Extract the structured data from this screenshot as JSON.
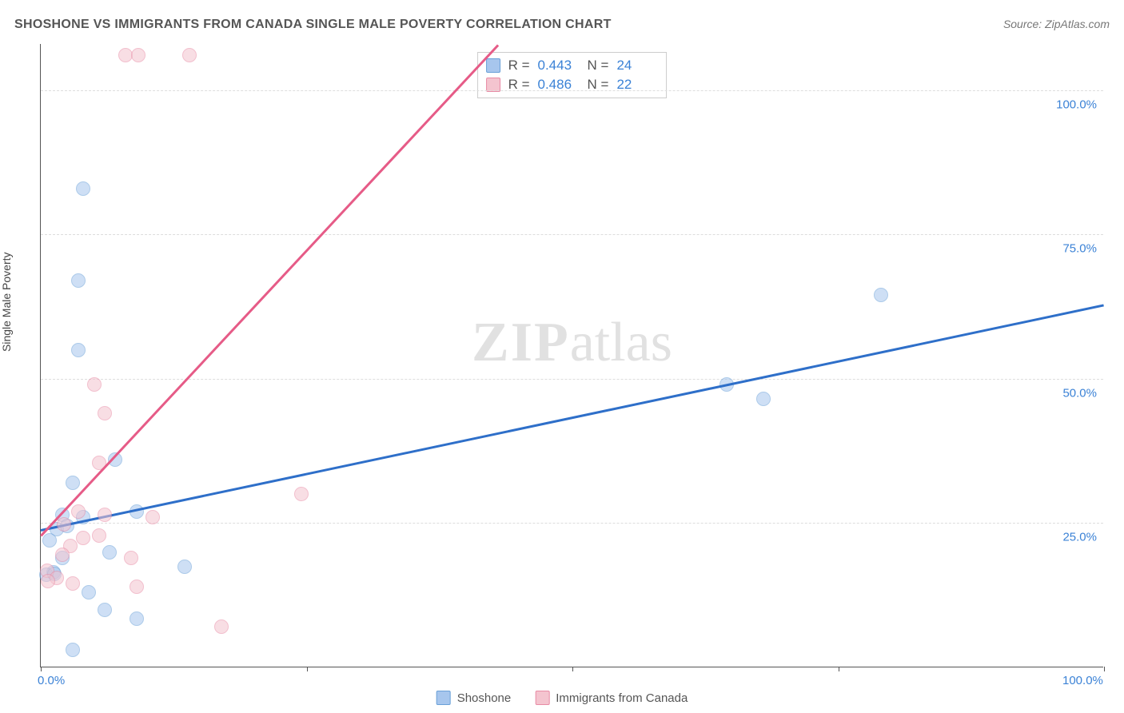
{
  "title": "SHOSHONE VS IMMIGRANTS FROM CANADA SINGLE MALE POVERTY CORRELATION CHART",
  "source": "Source: ZipAtlas.com",
  "y_axis_label": "Single Male Poverty",
  "watermark_zip": "ZIP",
  "watermark_atlas": "atlas",
  "chart": {
    "type": "scatter",
    "xlim": [
      0,
      100
    ],
    "ylim": [
      0,
      108
    ],
    "x_ticks": [
      0,
      25,
      50,
      75,
      100
    ],
    "x_tick_labels": {
      "0": "0.0%",
      "100": "100.0%"
    },
    "y_ticks": [
      25,
      50,
      75,
      100
    ],
    "y_tick_labels": {
      "25": "25.0%",
      "50": "50.0%",
      "75": "75.0%",
      "100": "100.0%"
    },
    "grid_color": "#dddddd",
    "background_color": "#ffffff",
    "axis_color": "#555555",
    "point_radius": 9,
    "point_opacity": 0.55,
    "series": [
      {
        "name": "Shoshone",
        "color_fill": "#a7c6ed",
        "color_stroke": "#6aa0d8",
        "trend_color": "#2e6fc9",
        "trend_width": 2.5,
        "R": "0.443",
        "N": "24",
        "trend": {
          "x1": 0,
          "y1": 24,
          "x2": 100,
          "y2": 63
        },
        "points": [
          {
            "x": 4,
            "y": 83
          },
          {
            "x": 3.5,
            "y": 67
          },
          {
            "x": 3.5,
            "y": 55
          },
          {
            "x": 79,
            "y": 64.5
          },
          {
            "x": 64.5,
            "y": 49
          },
          {
            "x": 68,
            "y": 46.5
          },
          {
            "x": 7,
            "y": 36
          },
          {
            "x": 3,
            "y": 32
          },
          {
            "x": 2,
            "y": 26.5
          },
          {
            "x": 4,
            "y": 26
          },
          {
            "x": 9,
            "y": 27
          },
          {
            "x": 1.5,
            "y": 24
          },
          {
            "x": 2.5,
            "y": 24.5
          },
          {
            "x": 6.5,
            "y": 20
          },
          {
            "x": 1.2,
            "y": 16.5
          },
          {
            "x": 0.5,
            "y": 16
          },
          {
            "x": 1.3,
            "y": 16.2
          },
          {
            "x": 4.5,
            "y": 13
          },
          {
            "x": 13.5,
            "y": 17.5
          },
          {
            "x": 6,
            "y": 10
          },
          {
            "x": 9,
            "y": 8.5
          },
          {
            "x": 3,
            "y": 3
          },
          {
            "x": 0.8,
            "y": 22
          },
          {
            "x": 2,
            "y": 19
          }
        ]
      },
      {
        "name": "Immigrants from Canada",
        "color_fill": "#f4c4cf",
        "color_stroke": "#e88ba5",
        "trend_color": "#e65b87",
        "trend_width": 2.5,
        "R": "0.486",
        "N": "22",
        "trend": {
          "x1": 0,
          "y1": 23,
          "x2": 43,
          "y2": 108
        },
        "points": [
          {
            "x": 8,
            "y": 106
          },
          {
            "x": 9.2,
            "y": 106
          },
          {
            "x": 14,
            "y": 106
          },
          {
            "x": 5,
            "y": 49
          },
          {
            "x": 6,
            "y": 44
          },
          {
            "x": 5.5,
            "y": 35.5
          },
          {
            "x": 24.5,
            "y": 30
          },
          {
            "x": 3.5,
            "y": 27
          },
          {
            "x": 6,
            "y": 26.5
          },
          {
            "x": 10.5,
            "y": 26
          },
          {
            "x": 2.2,
            "y": 24.8
          },
          {
            "x": 4,
            "y": 22.5
          },
          {
            "x": 2.8,
            "y": 21
          },
          {
            "x": 2,
            "y": 19.5
          },
          {
            "x": 5.5,
            "y": 22.8
          },
          {
            "x": 8.5,
            "y": 19
          },
          {
            "x": 0.6,
            "y": 16.8
          },
          {
            "x": 1.5,
            "y": 15.5
          },
          {
            "x": 0.7,
            "y": 15
          },
          {
            "x": 3,
            "y": 14.5
          },
          {
            "x": 9,
            "y": 14
          },
          {
            "x": 17,
            "y": 7
          }
        ]
      }
    ]
  },
  "legend": {
    "series1_label": "Shoshone",
    "series2_label": "Immigrants from Canada"
  },
  "stats_labels": {
    "R": "R =",
    "N": "N ="
  }
}
